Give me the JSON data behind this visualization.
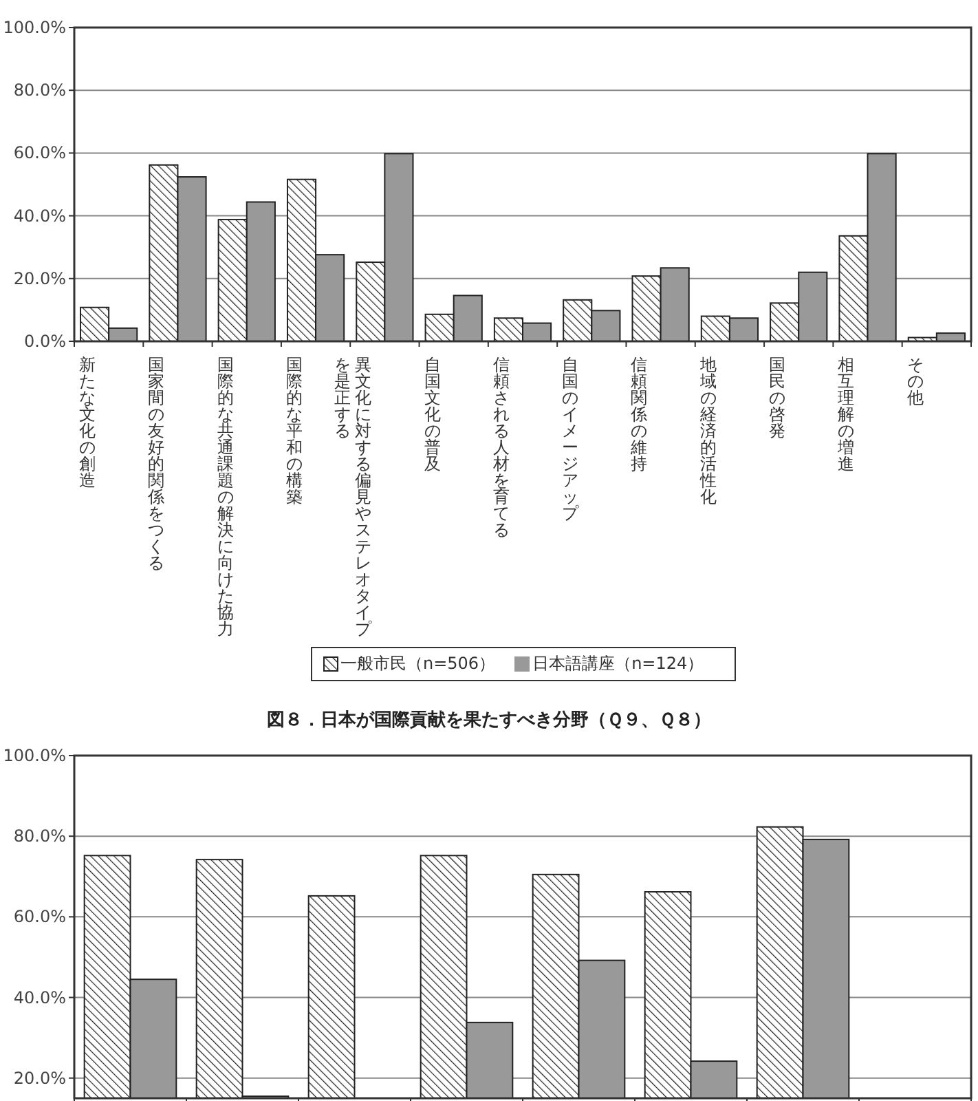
{
  "chart_data": [
    {
      "type": "bar",
      "categories": [
        "新たな文化の創造",
        "国家間の友好的関係をつくる",
        "国際的な共通課題の解決に向けた協力",
        "国際的な平和の構築",
        "異文化に対する偏見やステレオタイプを是正する",
        "自国文化の普及",
        "信頼される人材を育てる",
        "自国のイメージアップ",
        "信頼関係の維持",
        "地域の経済的活性化",
        "国民の啓発",
        "相互理解の増進",
        "その他"
      ],
      "series": [
        {
          "name": "一般市民（n=506）",
          "color": "#222222",
          "values": [
            10.8,
            56.2,
            38.8,
            51.6,
            25.2,
            8.6,
            7.4,
            13.2,
            20.8,
            8.0,
            12.2,
            33.6,
            1.2
          ]
        },
        {
          "name": "日本語講座（n=124）",
          "color": "#999999",
          "values": [
            4.2,
            52.4,
            44.4,
            27.6,
            59.8,
            14.6,
            5.8,
            9.8,
            23.4,
            7.4,
            22.0,
            59.8,
            2.6
          ]
        }
      ],
      "ylim": [
        0,
        100
      ],
      "yticks": [
        {
          "value": 0,
          "label": "0.0%"
        },
        {
          "value": 20,
          "label": "20.0%"
        },
        {
          "value": 40,
          "label": "40.0%"
        },
        {
          "value": 60,
          "label": "60.0%"
        },
        {
          "value": 80,
          "label": "80.0%"
        },
        {
          "value": 100,
          "label": "100.0%"
        }
      ],
      "grid": "y",
      "legend": "bottom"
    },
    {
      "type": "bar",
      "title": "図８．日本が国際貢献を果たすべき分野（Ｑ９、Ｑ８）",
      "categories": [
        null,
        null,
        null,
        null,
        null,
        null,
        null,
        null
      ],
      "series": [
        {
          "color": "#222222",
          "values": [
            75.2,
            74.2,
            65.2,
            75.2,
            70.5,
            66.2,
            82.3,
            null
          ]
        },
        {
          "color": "#999999",
          "values": [
            44.5,
            15.5,
            null,
            33.8,
            49.2,
            24.2,
            79.2,
            null
          ]
        }
      ],
      "ylim": [
        15,
        100
      ],
      "yticks": [
        {
          "value": 20,
          "label": "20.0%"
        },
        {
          "value": 40,
          "label": "40.0%"
        },
        {
          "value": 60,
          "label": "60.0%"
        },
        {
          "value": 80,
          "label": "80.0%"
        },
        {
          "value": 100,
          "label": "100.0%"
        }
      ],
      "grid": "y"
    }
  ]
}
